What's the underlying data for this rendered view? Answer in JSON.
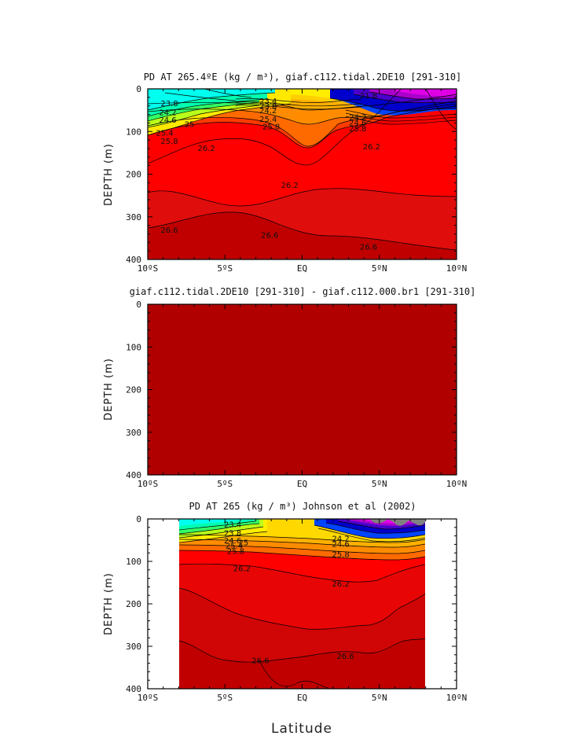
{
  "figure": {
    "xlabel": "Latitude"
  },
  "chart_data": [
    {
      "type": "contour",
      "title": "PD AT 265.4ºE (kg / m³), giaf.c112.tidal.2DE10 [291-310]",
      "ylabel": "DEPTH (m)",
      "xlim": [
        -10,
        10
      ],
      "ylim": [
        400,
        0
      ],
      "x_ticks": [
        "10ºS",
        "5ºS",
        "EQ",
        "5ºN",
        "10ºN"
      ],
      "y_ticks": [
        "0",
        "100",
        "200",
        "300",
        "400"
      ],
      "contour_labels": [
        {
          "text": "23.4",
          "lat": -2.2,
          "depth": 28
        },
        {
          "text": "23.8",
          "lat": -8.6,
          "depth": 33
        },
        {
          "text": "23.8",
          "lat": -2.2,
          "depth": 40
        },
        {
          "text": "24.2",
          "lat": -8.7,
          "depth": 54
        },
        {
          "text": "24.2",
          "lat": -2.2,
          "depth": 50
        },
        {
          "text": "24.6",
          "lat": -8.7,
          "depth": 72
        },
        {
          "text": "25",
          "lat": -7.3,
          "depth": 82
        },
        {
          "text": "25.4",
          "lat": -8.9,
          "depth": 102
        },
        {
          "text": "25.4",
          "lat": -2.2,
          "depth": 70
        },
        {
          "text": "25.8",
          "lat": -8.6,
          "depth": 122
        },
        {
          "text": "25.8",
          "lat": -2.0,
          "depth": 88
        },
        {
          "text": "21.8",
          "lat": 4.3,
          "depth": 15
        },
        {
          "text": "24.2",
          "lat": 3.6,
          "depth": 65
        },
        {
          "text": "24.6",
          "lat": 3.6,
          "depth": 78
        },
        {
          "text": "25.8",
          "lat": 3.6,
          "depth": 92
        },
        {
          "text": "26.2",
          "lat": -6.2,
          "depth": 138
        },
        {
          "text": "26.2",
          "lat": 4.5,
          "depth": 135
        },
        {
          "text": "26.2",
          "lat": -0.8,
          "depth": 225
        },
        {
          "text": "26.6",
          "lat": -8.6,
          "depth": 330
        },
        {
          "text": "26.6",
          "lat": -2.1,
          "depth": 342
        },
        {
          "text": "26.6",
          "lat": 4.3,
          "depth": 370
        }
      ]
    },
    {
      "type": "contour",
      "title": "giaf.c112.tidal.2DE10 [291-310] - giaf.c112.000.br1 [291-310]",
      "ylabel": "DEPTH (m)",
      "xlim": [
        -10,
        10
      ],
      "ylim": [
        400,
        0
      ],
      "x_ticks": [
        "10ºS",
        "5ºS",
        "EQ",
        "5ºN",
        "10ºN"
      ],
      "y_ticks": [
        "0",
        "100",
        "200",
        "300",
        "400"
      ],
      "contour_labels": []
    },
    {
      "type": "contour",
      "title": "PD AT 265 (kg / m³) Johnson et al (2002)",
      "ylabel": "DEPTH (m)",
      "xlim": [
        -10,
        10
      ],
      "ylim": [
        400,
        0
      ],
      "data_xlim": [
        -8,
        8
      ],
      "x_ticks": [
        "10ºS",
        "5ºS",
        "EQ",
        "5ºN",
        "10ºN"
      ],
      "y_ticks": [
        "0",
        "100",
        "200",
        "300",
        "400"
      ],
      "contour_labels": [
        {
          "text": "23.4",
          "lat": -4.5,
          "depth": 12
        },
        {
          "text": "23.8",
          "lat": -4.5,
          "depth": 32
        },
        {
          "text": "24.6",
          "lat": -4.5,
          "depth": 50
        },
        {
          "text": "25",
          "lat": -3.8,
          "depth": 55
        },
        {
          "text": "25.4",
          "lat": -4.4,
          "depth": 62
        },
        {
          "text": "25.8",
          "lat": -4.3,
          "depth": 75
        },
        {
          "text": "24.2",
          "lat": 2.5,
          "depth": 45
        },
        {
          "text": "24.6",
          "lat": 2.5,
          "depth": 58
        },
        {
          "text": "25.8",
          "lat": 2.5,
          "depth": 82
        },
        {
          "text": "26.2",
          "lat": -3.9,
          "depth": 116
        },
        {
          "text": "26.2",
          "lat": 2.5,
          "depth": 152
        },
        {
          "text": "26.6",
          "lat": -2.7,
          "depth": 332
        },
        {
          "text": "26.6",
          "lat": 2.8,
          "depth": 322
        }
      ]
    }
  ]
}
